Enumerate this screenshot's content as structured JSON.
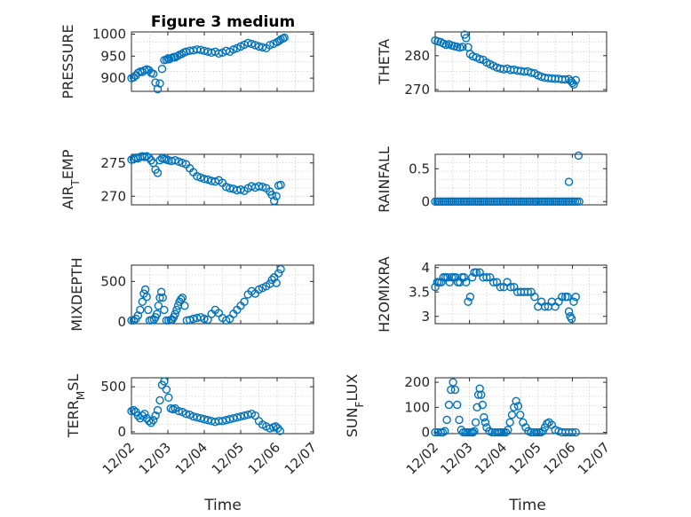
{
  "figure": {
    "title": "Figure 3 medium",
    "marker_color": "#0072bd",
    "grid": "minor-dotted",
    "x_ticks": [
      "12/02",
      "12/03",
      "12/04",
      "12/05",
      "12/06",
      "12/07"
    ],
    "x_label": "Time"
  },
  "chart_data": [
    {
      "type": "scatter",
      "ylabel": "PRESSURE",
      "xlim": [
        0,
        5
      ],
      "ylim": [
        870,
        1005
      ],
      "yticks": [
        "900",
        "950",
        "1000"
      ],
      "ytick_values": [
        900,
        950,
        1000
      ],
      "x": [
        0.0,
        0.06,
        0.12,
        0.18,
        0.24,
        0.3,
        0.36,
        0.42,
        0.48,
        0.54,
        0.6,
        0.66,
        0.72,
        0.78,
        0.84,
        0.9,
        0.96,
        1.0,
        1.04,
        1.1,
        1.16,
        1.2,
        1.26,
        1.32,
        1.38,
        1.44,
        1.5,
        1.6,
        1.7,
        1.8,
        1.9,
        2.0,
        2.1,
        2.2,
        2.3,
        2.4,
        2.5,
        2.6,
        2.7,
        2.8,
        2.9,
        3.0,
        3.1,
        3.2,
        3.3,
        3.4,
        3.5,
        3.6,
        3.7,
        3.8,
        3.9,
        4.0,
        4.06,
        4.1,
        4.16,
        4.2
      ],
      "y": [
        900,
        902,
        906,
        912,
        915,
        914,
        918,
        920,
        918,
        912,
        910,
        890,
        875,
        888,
        921,
        941,
        942,
        945,
        943,
        946,
        948,
        947,
        950,
        953,
        955,
        958,
        960,
        962,
        963,
        965,
        964,
        962,
        960,
        958,
        960,
        956,
        958,
        962,
        960,
        965,
        968,
        972,
        976,
        980,
        978,
        975,
        972,
        970,
        968,
        975,
        978,
        982,
        985,
        988,
        990,
        992
      ]
    },
    {
      "type": "scatter",
      "ylabel": "THETA",
      "xlim": [
        0,
        5
      ],
      "ylim": [
        269.5,
        287
      ],
      "yticks": [
        "270",
        "280"
      ],
      "ytick_values": [
        270,
        280
      ],
      "x": [
        0.0,
        0.08,
        0.16,
        0.24,
        0.32,
        0.4,
        0.48,
        0.56,
        0.64,
        0.72,
        0.8,
        0.86,
        0.9,
        0.96,
        1.02,
        1.1,
        1.2,
        1.3,
        1.4,
        1.5,
        1.6,
        1.7,
        1.8,
        1.9,
        2.0,
        2.1,
        2.2,
        2.3,
        2.4,
        2.5,
        2.6,
        2.7,
        2.8,
        2.9,
        3.0,
        3.1,
        3.2,
        3.3,
        3.4,
        3.5,
        3.6,
        3.7,
        3.8,
        3.9,
        3.96,
        4.0,
        4.04,
        4.1
      ],
      "y": [
        284.5,
        284.2,
        284.0,
        283.6,
        283.2,
        283.4,
        283.0,
        282.8,
        282.6,
        282.4,
        282.6,
        286.2,
        285.2,
        282.5,
        280.5,
        279.8,
        279.5,
        279.0,
        278.8,
        278.0,
        277.5,
        277.0,
        276.5,
        276.2,
        276.0,
        276.2,
        275.8,
        275.9,
        275.6,
        275.5,
        275.3,
        275.4,
        275.0,
        274.8,
        274.2,
        273.8,
        273.5,
        273.4,
        273.3,
        273.2,
        273.2,
        273.0,
        273.0,
        273.1,
        272.5,
        272.0,
        271.5,
        272.8
      ]
    },
    {
      "type": "scatter",
      "ylabel": "AIR_TEMP",
      "xlim": [
        0,
        5
      ],
      "ylim": [
        268.7,
        276.3
      ],
      "yticks": [
        "270",
        "275"
      ],
      "ytick_values": [
        270,
        275
      ],
      "x": [
        0.0,
        0.06,
        0.12,
        0.18,
        0.24,
        0.3,
        0.36,
        0.42,
        0.48,
        0.54,
        0.6,
        0.66,
        0.72,
        0.78,
        0.84,
        0.9,
        0.96,
        1.02,
        1.1,
        1.2,
        1.3,
        1.4,
        1.5,
        1.6,
        1.7,
        1.8,
        1.9,
        2.0,
        2.1,
        2.2,
        2.3,
        2.4,
        2.5,
        2.6,
        2.7,
        2.8,
        2.9,
        3.0,
        3.1,
        3.2,
        3.3,
        3.4,
        3.5,
        3.6,
        3.7,
        3.8,
        3.86,
        3.92,
        3.98,
        4.04,
        4.1
      ],
      "y": [
        275.5,
        275.6,
        275.8,
        275.7,
        275.9,
        276.0,
        275.9,
        276.0,
        275.8,
        275.4,
        275.0,
        274.0,
        273.5,
        275.4,
        275.7,
        275.6,
        275.5,
        275.4,
        275.3,
        275.4,
        275.2,
        275.0,
        274.8,
        274.2,
        273.6,
        273.0,
        272.8,
        272.6,
        272.5,
        272.3,
        272.2,
        272.4,
        272.0,
        271.4,
        271.2,
        271.1,
        270.9,
        271.0,
        270.8,
        271.2,
        271.5,
        271.3,
        271.5,
        271.4,
        271.2,
        270.7,
        270.2,
        269.3,
        270.0,
        271.6,
        271.7
      ]
    },
    {
      "type": "scatter",
      "ylabel": "RAINFALL",
      "xlim": [
        0,
        5
      ],
      "ylim": [
        -0.05,
        0.72
      ],
      "yticks": [
        "0",
        "0.5"
      ],
      "ytick_values": [
        0,
        0.5
      ],
      "x": [
        0.0,
        0.06,
        0.12,
        0.18,
        0.24,
        0.3,
        0.36,
        0.42,
        0.48,
        0.54,
        0.6,
        0.66,
        0.72,
        0.78,
        0.84,
        0.9,
        0.96,
        1.02,
        1.08,
        1.14,
        1.2,
        1.26,
        1.32,
        1.38,
        1.44,
        1.5,
        1.56,
        1.62,
        1.68,
        1.74,
        1.8,
        1.86,
        1.92,
        1.98,
        2.04,
        2.1,
        2.16,
        2.22,
        2.28,
        2.34,
        2.4,
        2.46,
        2.52,
        2.58,
        2.64,
        2.7,
        2.76,
        2.82,
        2.88,
        2.94,
        3.0,
        3.06,
        3.12,
        3.18,
        3.24,
        3.3,
        3.36,
        3.42,
        3.48,
        3.54,
        3.6,
        3.66,
        3.72,
        3.78,
        3.84,
        3.9,
        3.96,
        4.02,
        4.08,
        4.14,
        4.2,
        3.9,
        4.18
      ],
      "y": [
        0,
        0,
        0,
        0,
        0,
        0,
        0,
        0,
        0,
        0,
        0,
        0,
        0,
        0,
        0,
        0,
        0,
        0,
        0,
        0,
        0,
        0,
        0,
        0,
        0,
        0,
        0,
        0,
        0,
        0,
        0,
        0,
        0,
        0,
        0,
        0,
        0,
        0,
        0,
        0,
        0,
        0,
        0,
        0,
        0,
        0,
        0,
        0,
        0,
        0,
        0,
        0,
        0,
        0,
        0,
        0,
        0,
        0,
        0,
        0,
        0,
        0,
        0,
        0,
        0,
        0,
        0,
        0,
        0,
        0,
        0,
        0.3,
        0.7
      ]
    },
    {
      "type": "scatter",
      "ylabel": "MIXDEPTH",
      "xlim": [
        0,
        5
      ],
      "ylim": [
        -20,
        700
      ],
      "yticks": [
        "0",
        "500"
      ],
      "ytick_values": [
        0,
        500
      ],
      "x": [
        0.0,
        0.06,
        0.12,
        0.18,
        0.24,
        0.3,
        0.34,
        0.38,
        0.42,
        0.46,
        0.5,
        0.56,
        0.62,
        0.66,
        0.7,
        0.74,
        0.78,
        0.82,
        0.86,
        0.9,
        0.96,
        1.02,
        1.08,
        1.12,
        1.16,
        1.2,
        1.24,
        1.28,
        1.32,
        1.36,
        1.4,
        1.46,
        1.52,
        1.6,
        1.7,
        1.8,
        1.9,
        2.0,
        2.1,
        2.2,
        2.3,
        2.4,
        2.5,
        2.6,
        2.7,
        2.8,
        2.9,
        3.0,
        3.1,
        3.2,
        3.3,
        3.4,
        3.5,
        3.6,
        3.7,
        3.8,
        3.86,
        3.92,
        3.98,
        4.04,
        4.1
      ],
      "y": [
        20,
        20,
        40,
        80,
        150,
        250,
        350,
        400,
        310,
        150,
        20,
        25,
        30,
        60,
        100,
        200,
        300,
        370,
        300,
        150,
        20,
        20,
        25,
        30,
        60,
        100,
        150,
        200,
        250,
        280,
        300,
        200,
        20,
        25,
        40,
        50,
        60,
        40,
        30,
        100,
        150,
        110,
        50,
        20,
        40,
        100,
        150,
        200,
        250,
        340,
        380,
        350,
        400,
        420,
        440,
        470,
        520,
        550,
        480,
        600,
        650
      ]
    },
    {
      "type": "scatter",
      "ylabel": "H2OMIXRA",
      "xlim": [
        0,
        5
      ],
      "ylim": [
        2.85,
        4.05
      ],
      "yticks": [
        "3",
        "3.5",
        "4"
      ],
      "ytick_values": [
        3,
        3.5,
        4
      ],
      "x": [
        0.0,
        0.06,
        0.12,
        0.18,
        0.24,
        0.3,
        0.36,
        0.42,
        0.48,
        0.54,
        0.6,
        0.66,
        0.72,
        0.78,
        0.84,
        0.9,
        0.96,
        1.02,
        1.08,
        1.14,
        1.2,
        1.3,
        1.4,
        1.5,
        1.6,
        1.7,
        1.8,
        1.9,
        2.0,
        2.1,
        2.2,
        2.3,
        2.4,
        2.5,
        2.6,
        2.7,
        2.8,
        2.9,
        3.0,
        3.1,
        3.2,
        3.3,
        3.4,
        3.5,
        3.6,
        3.7,
        3.8,
        3.86,
        3.9,
        3.94,
        3.98,
        4.04,
        4.1
      ],
      "y": [
        3.6,
        3.7,
        3.7,
        3.7,
        3.8,
        3.8,
        3.8,
        3.7,
        3.8,
        3.8,
        3.8,
        3.7,
        3.7,
        3.8,
        3.8,
        3.7,
        3.3,
        3.4,
        3.8,
        3.9,
        3.9,
        3.9,
        3.8,
        3.8,
        3.8,
        3.7,
        3.7,
        3.6,
        3.6,
        3.7,
        3.6,
        3.6,
        3.5,
        3.5,
        3.5,
        3.5,
        3.5,
        3.4,
        3.2,
        3.3,
        3.2,
        3.2,
        3.3,
        3.2,
        3.3,
        3.4,
        3.4,
        3.4,
        3.1,
        3.0,
        2.95,
        3.3,
        3.4
      ]
    },
    {
      "type": "scatter",
      "ylabel": "TERR_MSL",
      "xlim": [
        0,
        5
      ],
      "ylim": [
        -20,
        600
      ],
      "yticks": [
        "0",
        "500"
      ],
      "ytick_values": [
        0,
        500
      ],
      "x": [
        0.0,
        0.06,
        0.12,
        0.18,
        0.24,
        0.3,
        0.36,
        0.42,
        0.48,
        0.54,
        0.6,
        0.66,
        0.72,
        0.78,
        0.84,
        0.9,
        0.96,
        1.02,
        1.08,
        1.14,
        1.2,
        1.3,
        1.4,
        1.5,
        1.6,
        1.7,
        1.8,
        1.9,
        2.0,
        2.1,
        2.2,
        2.3,
        2.4,
        2.5,
        2.6,
        2.7,
        2.8,
        2.9,
        3.0,
        3.1,
        3.2,
        3.3,
        3.4,
        3.5,
        3.6,
        3.7,
        3.8,
        3.9,
        3.96,
        4.02,
        4.08
      ],
      "y": [
        230,
        240,
        220,
        180,
        150,
        180,
        200,
        150,
        120,
        100,
        130,
        180,
        240,
        350,
        520,
        560,
        470,
        380,
        260,
        250,
        260,
        230,
        220,
        200,
        190,
        170,
        160,
        150,
        140,
        130,
        120,
        110,
        120,
        120,
        130,
        140,
        150,
        160,
        170,
        180,
        190,
        200,
        180,
        120,
        80,
        60,
        40,
        50,
        60,
        40,
        10
      ]
    },
    {
      "type": "scatter",
      "ylabel": "SUN_FLUX",
      "xlim": [
        0,
        5
      ],
      "ylim": [
        -5,
        218
      ],
      "yticks": [
        "0",
        "100",
        "200"
      ],
      "ytick_values": [
        0,
        100,
        200
      ],
      "x": [
        0.0,
        0.08,
        0.16,
        0.22,
        0.28,
        0.34,
        0.4,
        0.46,
        0.52,
        0.58,
        0.64,
        0.7,
        0.76,
        0.82,
        0.88,
        0.94,
        1.0,
        1.06,
        1.1,
        1.14,
        1.18,
        1.22,
        1.26,
        1.3,
        1.34,
        1.38,
        1.42,
        1.46,
        1.5,
        1.58,
        1.66,
        1.74,
        1.82,
        1.88,
        1.94,
        2.0,
        2.06,
        2.12,
        2.18,
        2.24,
        2.3,
        2.36,
        2.42,
        2.48,
        2.56,
        2.64,
        2.72,
        2.8,
        2.88,
        2.96,
        3.02,
        3.08,
        3.14,
        3.2,
        3.26,
        3.32,
        3.4,
        3.5,
        3.6,
        3.7,
        3.8,
        3.9,
        4.0,
        4.1
      ],
      "y": [
        0,
        0,
        0,
        0,
        5,
        50,
        110,
        170,
        200,
        170,
        110,
        50,
        10,
        0,
        0,
        0,
        0,
        0,
        0,
        5,
        40,
        100,
        150,
        175,
        150,
        110,
        60,
        40,
        20,
        5,
        0,
        0,
        0,
        0,
        0,
        0,
        0,
        10,
        40,
        70,
        100,
        125,
        105,
        70,
        40,
        20,
        5,
        0,
        0,
        0,
        0,
        0,
        5,
        20,
        35,
        40,
        30,
        10,
        5,
        0,
        0,
        0,
        0,
        0
      ]
    }
  ]
}
